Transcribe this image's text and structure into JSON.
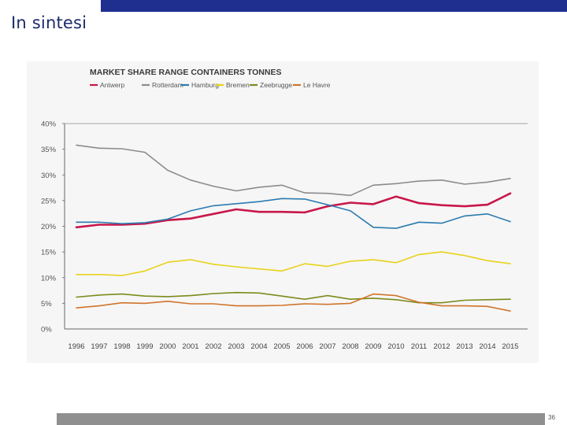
{
  "slide": {
    "title": "In sintesi",
    "page_number": "36"
  },
  "colors": {
    "top_bar": "#1f2f8f",
    "bottom_bar": "#8f8f8f",
    "title": "#1b2a6b"
  },
  "chart_data": {
    "type": "line",
    "title": "MARKET SHARE  RANGE CONTAINERS TONNES",
    "xlabel": "",
    "ylabel": "",
    "ylim": [
      0,
      40
    ],
    "y_ticks": [
      "0%",
      "5%",
      "10%",
      "15%",
      "20%",
      "25%",
      "30%",
      "35%",
      "40%"
    ],
    "grid": false,
    "legend_position": "top-left",
    "x": [
      "1996",
      "1997",
      "1998",
      "1999",
      "2000",
      "2001",
      "2002",
      "2003",
      "2004",
      "2005",
      "2006",
      "2007",
      "2008",
      "2009",
      "2010",
      "2011",
      "2012",
      "2013",
      "2014",
      "2015"
    ],
    "series": [
      {
        "name": "Antwerp",
        "color": "#c8174a",
        "width": 2.6,
        "values": [
          19.8,
          20.3,
          20.3,
          20.5,
          21.2,
          21.5,
          22.4,
          23.3,
          22.8,
          22.8,
          22.7,
          23.9,
          24.6,
          24.3,
          25.8,
          24.5,
          24.1,
          23.9,
          24.2,
          26.4
        ]
      },
      {
        "name": "Rotterdam",
        "color": "#8c8c8c",
        "width": 1.6,
        "values": [
          35.8,
          35.2,
          35.1,
          34.4,
          30.9,
          29.0,
          27.8,
          26.9,
          27.6,
          28.0,
          26.5,
          26.4,
          26.0,
          28.0,
          28.3,
          28.8,
          29.0,
          28.2,
          28.6,
          29.3
        ]
      },
      {
        "name": "Hamburg",
        "color": "#2b7bb0",
        "width": 1.6,
        "values": [
          20.8,
          20.8,
          20.5,
          20.7,
          21.4,
          23.0,
          24.0,
          24.4,
          24.8,
          25.4,
          25.3,
          24.2,
          23.0,
          19.8,
          19.6,
          20.8,
          20.6,
          22.0,
          22.4,
          20.9
        ]
      },
      {
        "name": "Bremen",
        "color": "#e8d21c",
        "width": 1.6,
        "values": [
          10.6,
          10.6,
          10.4,
          11.3,
          13.0,
          13.5,
          12.6,
          12.1,
          11.7,
          11.3,
          12.7,
          12.2,
          13.2,
          13.5,
          12.9,
          14.5,
          15.0,
          14.3,
          13.3,
          12.7
        ]
      },
      {
        "name": "Zeebrugge",
        "color": "#7d8a1c",
        "width": 1.6,
        "values": [
          6.2,
          6.6,
          6.8,
          6.4,
          6.3,
          6.5,
          6.9,
          7.1,
          7.0,
          6.4,
          5.8,
          6.5,
          5.8,
          6.0,
          5.7,
          5.1,
          5.1,
          5.6,
          5.7,
          5.8
        ]
      },
      {
        "name": "Le Havre",
        "color": "#d0742a",
        "width": 1.6,
        "values": [
          4.1,
          4.5,
          5.1,
          5.0,
          5.4,
          4.9,
          4.9,
          4.5,
          4.5,
          4.6,
          4.9,
          4.8,
          5.0,
          6.8,
          6.5,
          5.2,
          4.5,
          4.5,
          4.4,
          3.5
        ]
      }
    ]
  }
}
